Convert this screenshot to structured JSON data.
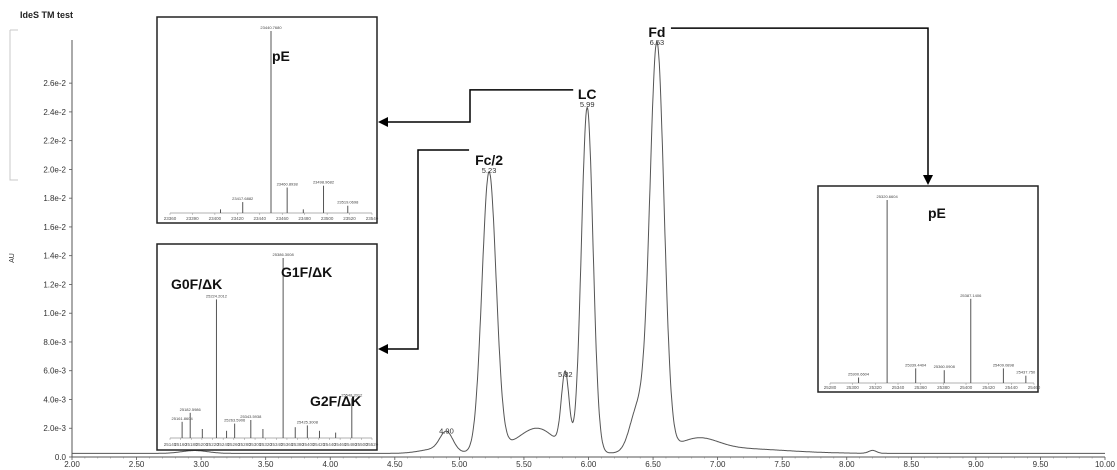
{
  "chart_data": {
    "type": "line",
    "title": "IdeS TM test",
    "ylabel": "AU",
    "xlabel": "",
    "xlim": [
      2.0,
      10.0
    ],
    "ylim": [
      0,
      0.029
    ],
    "x_ticks": [
      "2.00",
      "2.50",
      "3.00",
      "3.50",
      "4.00",
      "4.50",
      "5.00",
      "5.50",
      "6.00",
      "6.50",
      "7.00",
      "7.50",
      "8.00",
      "8.50",
      "9.00",
      "9.50",
      "10.00"
    ],
    "y_ticks": [
      {
        "v": 0.0,
        "label": "0.0"
      },
      {
        "v": 0.002,
        "label": "2.0e-3"
      },
      {
        "v": 0.004,
        "label": "4.0e-3"
      },
      {
        "v": 0.006,
        "label": "6.0e-3"
      },
      {
        "v": 0.008,
        "label": "8.0e-3"
      },
      {
        "v": 0.01,
        "label": "1.0e-2"
      },
      {
        "v": 0.012,
        "label": "1.2e-2"
      },
      {
        "v": 0.014,
        "label": "1.4e-2"
      },
      {
        "v": 0.016,
        "label": "1.6e-2"
      },
      {
        "v": 0.018,
        "label": "1.8e-2"
      },
      {
        "v": 0.02,
        "label": "2.0e-2"
      },
      {
        "v": 0.022,
        "label": "2.2e-2"
      },
      {
        "v": 0.024,
        "label": "2.4e-2"
      },
      {
        "v": 0.026,
        "label": "2.6e-2"
      }
    ],
    "peaks": [
      {
        "rt": 4.9,
        "label": "4.90",
        "height": 0.0013,
        "width": 0.05
      },
      {
        "rt": 5.23,
        "label": "5.23",
        "height": 0.0194,
        "width": 0.055,
        "name": "Fc/2"
      },
      {
        "rt": 5.82,
        "label": "5.82",
        "height": 0.0052,
        "width": 0.03
      },
      {
        "rt": 5.99,
        "label": "5.99",
        "height": 0.024,
        "width": 0.045,
        "name": "LC"
      },
      {
        "rt": 6.53,
        "label": "6.53",
        "height": 0.0283,
        "width": 0.055,
        "name": "Fd"
      }
    ],
    "shoulders": [
      {
        "rt": 4.82,
        "height": 0.0003,
        "width": 0.12
      },
      {
        "rt": 5.55,
        "height": 0.0009,
        "width": 0.18
      },
      {
        "rt": 6.38,
        "height": 0.003,
        "width": 0.06
      },
      {
        "rt": 6.85,
        "height": 0.0008,
        "width": 0.15
      },
      {
        "rt": 2.95,
        "height": 0.0002,
        "width": 0.1
      },
      {
        "rt": 8.2,
        "height": 0.0002,
        "width": 0.03
      }
    ],
    "insets": [
      {
        "id": "lc-mass",
        "name": "pE",
        "x_ticks": [
          "23360",
          "23390",
          "23400",
          "23420",
          "23440",
          "23460",
          "23480",
          "23500",
          "23520",
          "23540"
        ],
        "peaks": [
          {
            "pos": 0.5,
            "h": 1.0,
            "label": "23440.7680"
          },
          {
            "pos": 0.36,
            "h": 0.06,
            "label": "23417.6882"
          },
          {
            "pos": 0.58,
            "h": 0.14,
            "label": "23460.8938"
          },
          {
            "pos": 0.76,
            "h": 0.15,
            "label": "23498.9682"
          },
          {
            "pos": 0.88,
            "h": 0.04,
            "label": "23519.0698"
          },
          {
            "pos": 0.25,
            "h": 0.02,
            "label": ""
          },
          {
            "pos": 0.66,
            "h": 0.02,
            "label": ""
          }
        ]
      },
      {
        "id": "fc-mass",
        "name_left": "G0F/ΔK",
        "name_mid": "G1F/ΔK",
        "name_right": "G2F/ΔK",
        "x_ticks": [
          "25140",
          "25160",
          "25180",
          "25200",
          "25220",
          "25240",
          "25260",
          "25280",
          "25300",
          "25320",
          "25340",
          "25360",
          "25380",
          "25400",
          "25420",
          "25440",
          "25460",
          "25480",
          "25500",
          "25520"
        ],
        "peaks": [
          {
            "pos": 0.23,
            "h": 0.77,
            "label": "25224.2012"
          },
          {
            "pos": 0.56,
            "h": 1.0,
            "label": "25386.3008"
          },
          {
            "pos": 0.9,
            "h": 0.22,
            "label": "25548.2012"
          },
          {
            "pos": 0.06,
            "h": 0.09,
            "label": "25161.8604"
          },
          {
            "pos": 0.1,
            "h": 0.14,
            "label": "25182.5986"
          },
          {
            "pos": 0.32,
            "h": 0.08,
            "label": "25263.5906"
          },
          {
            "pos": 0.4,
            "h": 0.1,
            "label": "25343.5938"
          },
          {
            "pos": 0.68,
            "h": 0.07,
            "label": "25425.3008"
          },
          {
            "pos": 0.16,
            "h": 0.05,
            "label": ""
          },
          {
            "pos": 0.28,
            "h": 0.04,
            "label": ""
          },
          {
            "pos": 0.46,
            "h": 0.05,
            "label": ""
          },
          {
            "pos": 0.62,
            "h": 0.06,
            "label": ""
          },
          {
            "pos": 0.74,
            "h": 0.04,
            "label": ""
          },
          {
            "pos": 0.82,
            "h": 0.03,
            "label": ""
          }
        ]
      },
      {
        "id": "fd-mass",
        "name": "pE",
        "x_ticks": [
          "25280",
          "25300",
          "25320",
          "25340",
          "25360",
          "25380",
          "25400",
          "25420",
          "25440",
          "25460"
        ],
        "peaks": [
          {
            "pos": 0.28,
            "h": 1.0,
            "label": "25320.6604"
          },
          {
            "pos": 0.14,
            "h": 0.03,
            "label": "25300.6604"
          },
          {
            "pos": 0.42,
            "h": 0.08,
            "label": "25339.4404"
          },
          {
            "pos": 0.56,
            "h": 0.07,
            "label": "25360.0908"
          },
          {
            "pos": 0.69,
            "h": 0.46,
            "label": "25387.1406"
          },
          {
            "pos": 0.85,
            "h": 0.08,
            "label": "25409.0898"
          },
          {
            "pos": 0.96,
            "h": 0.04,
            "label": "25437.750"
          }
        ]
      }
    ]
  }
}
